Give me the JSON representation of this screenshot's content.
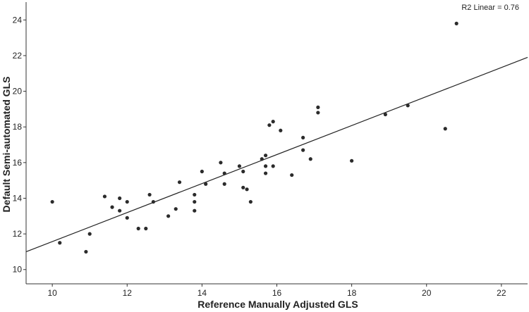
{
  "chart_data": {
    "type": "scatter",
    "title": "",
    "xlabel": "Reference Manually Adjusted GLS",
    "ylabel": "Default Semi-automated GLS",
    "xlim": [
      9.3,
      22.7
    ],
    "ylim": [
      9.2,
      25.0
    ],
    "x_ticks": [
      10,
      12,
      14,
      16,
      18,
      20,
      22
    ],
    "y_ticks": [
      10,
      12,
      14,
      16,
      18,
      20,
      22,
      24
    ],
    "grid": false,
    "legend": "none",
    "annotation": "R2 Linear = 0.76",
    "fit_line": {
      "x": [
        9.3,
        22.7
      ],
      "y": [
        11.0,
        21.9
      ]
    },
    "points": [
      {
        "x": 10.0,
        "y": 13.8
      },
      {
        "x": 10.2,
        "y": 11.5
      },
      {
        "x": 10.9,
        "y": 11.0
      },
      {
        "x": 11.0,
        "y": 12.0
      },
      {
        "x": 11.4,
        "y": 14.1
      },
      {
        "x": 11.6,
        "y": 13.5
      },
      {
        "x": 11.8,
        "y": 13.3
      },
      {
        "x": 11.8,
        "y": 14.0
      },
      {
        "x": 12.0,
        "y": 13.8
      },
      {
        "x": 12.0,
        "y": 12.9
      },
      {
        "x": 12.3,
        "y": 12.3
      },
      {
        "x": 12.5,
        "y": 12.3
      },
      {
        "x": 12.6,
        "y": 14.2
      },
      {
        "x": 12.7,
        "y": 13.8
      },
      {
        "x": 13.1,
        "y": 13.0
      },
      {
        "x": 13.3,
        "y": 13.4
      },
      {
        "x": 13.4,
        "y": 14.9
      },
      {
        "x": 13.8,
        "y": 14.2
      },
      {
        "x": 13.8,
        "y": 13.8
      },
      {
        "x": 13.8,
        "y": 13.3
      },
      {
        "x": 14.0,
        "y": 15.5
      },
      {
        "x": 14.1,
        "y": 14.8
      },
      {
        "x": 14.5,
        "y": 16.0
      },
      {
        "x": 14.6,
        "y": 15.4
      },
      {
        "x": 14.6,
        "y": 14.8
      },
      {
        "x": 15.0,
        "y": 15.8
      },
      {
        "x": 15.1,
        "y": 15.5
      },
      {
        "x": 15.1,
        "y": 14.6
      },
      {
        "x": 15.2,
        "y": 14.5
      },
      {
        "x": 15.3,
        "y": 13.8
      },
      {
        "x": 15.6,
        "y": 16.2
      },
      {
        "x": 15.7,
        "y": 16.4
      },
      {
        "x": 15.7,
        "y": 15.8
      },
      {
        "x": 15.7,
        "y": 15.4
      },
      {
        "x": 15.8,
        "y": 18.1
      },
      {
        "x": 15.9,
        "y": 18.3
      },
      {
        "x": 15.9,
        "y": 15.8
      },
      {
        "x": 16.1,
        "y": 17.8
      },
      {
        "x": 16.4,
        "y": 15.3
      },
      {
        "x": 16.7,
        "y": 17.4
      },
      {
        "x": 16.7,
        "y": 16.7
      },
      {
        "x": 16.9,
        "y": 16.2
      },
      {
        "x": 17.1,
        "y": 19.1
      },
      {
        "x": 17.1,
        "y": 18.8
      },
      {
        "x": 18.0,
        "y": 16.1
      },
      {
        "x": 18.9,
        "y": 18.7
      },
      {
        "x": 19.5,
        "y": 19.2
      },
      {
        "x": 20.5,
        "y": 17.9
      },
      {
        "x": 20.8,
        "y": 23.8
      }
    ]
  }
}
